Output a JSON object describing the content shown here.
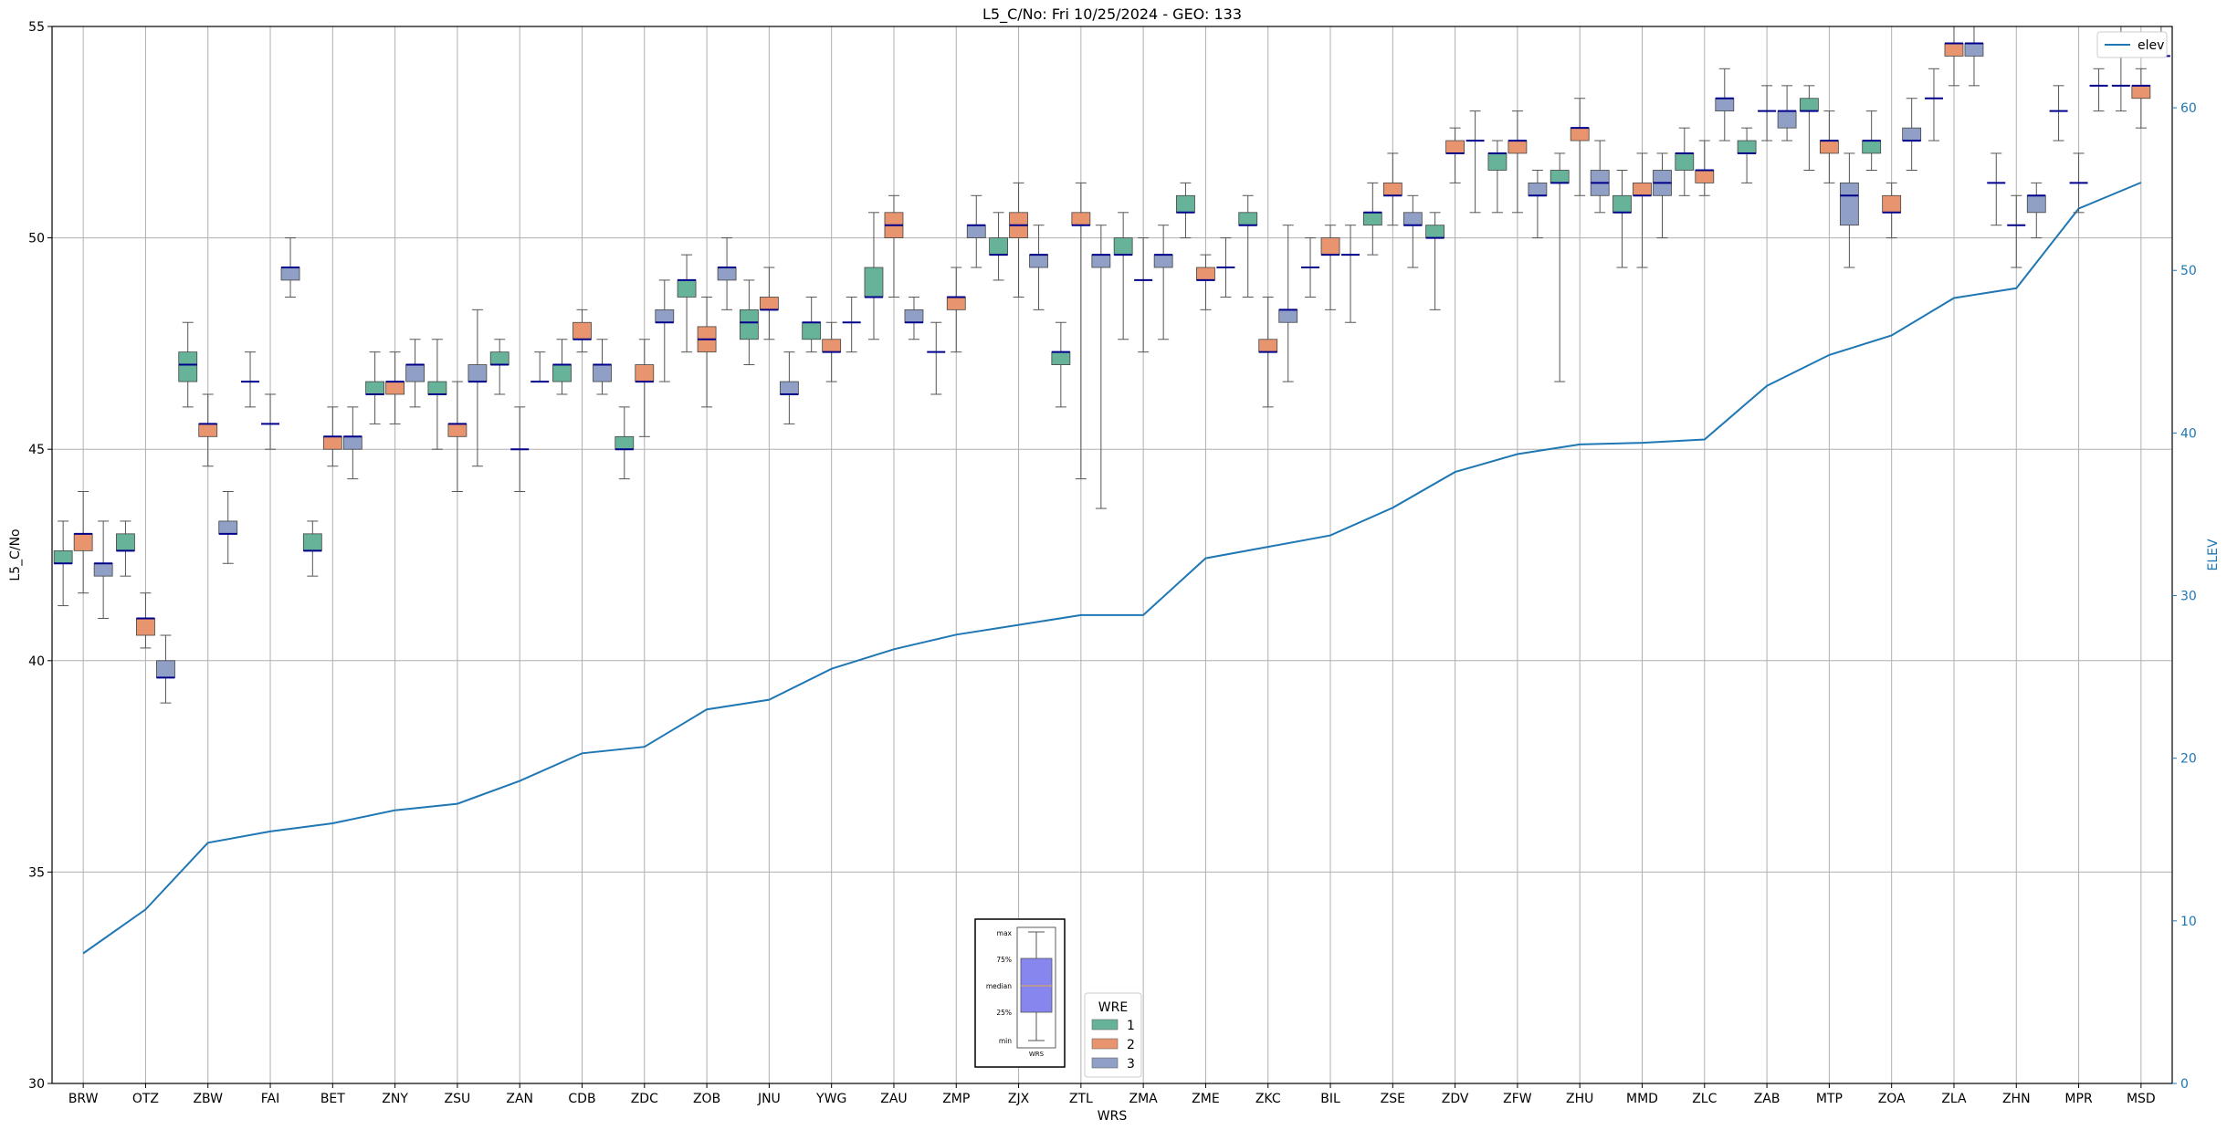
{
  "chart_data": {
    "type": "box",
    "title": "L5_C/No: Fri 10/25/2024 - GEO: 133",
    "xlabel": "WRS",
    "ylabel": "L5_C/No",
    "y2label": "ELEV",
    "ylim": [
      30,
      55
    ],
    "y2lim": [
      0,
      65
    ],
    "yticks": [
      30,
      35,
      40,
      45,
      50,
      55
    ],
    "y2ticks": [
      0,
      10,
      20,
      30,
      40,
      50,
      60
    ],
    "grid": true,
    "categories": [
      "BRW",
      "OTZ",
      "ZBW",
      "FAI",
      "BET",
      "ZNY",
      "ZSU",
      "ZAN",
      "CDB",
      "ZDC",
      "ZOB",
      "JNU",
      "YWG",
      "ZAU",
      "ZMP",
      "ZJX",
      "ZTL",
      "ZMA",
      "ZME",
      "ZKC",
      "BIL",
      "ZSE",
      "ZDV",
      "ZFW",
      "ZHU",
      "MMD",
      "ZLC",
      "ZAB",
      "MTP",
      "ZOA",
      "ZLA",
      "ZHN",
      "MPR",
      "MSD"
    ],
    "legend": {
      "title": "WRE",
      "placement": "bottom-center",
      "entries": [
        {
          "label": "1",
          "color": "#66b39a"
        },
        {
          "label": "2",
          "color": "#e8956f"
        },
        {
          "label": "3",
          "color": "#8f9fc6"
        }
      ]
    },
    "elev_legend": {
      "label": "elev",
      "placement": "top-right",
      "color": "#1f77b4"
    },
    "box_key": {
      "labels": [
        "max",
        "75%",
        "median",
        "25%",
        "min"
      ],
      "caption": "WRS"
    },
    "series": [
      {
        "name": "1",
        "color": "#66b39a",
        "boxes": [
          [
            41.3,
            42.3,
            42.3,
            42.6,
            43.3
          ],
          [
            42.0,
            42.6,
            42.6,
            43.0,
            43.3
          ],
          [
            46.0,
            46.6,
            47.0,
            47.3,
            48.0
          ],
          [
            46.0,
            46.6,
            46.6,
            46.6,
            47.3
          ],
          [
            42.0,
            42.6,
            42.6,
            43.0,
            43.3
          ],
          [
            45.6,
            46.3,
            46.3,
            46.6,
            47.3
          ],
          [
            45.0,
            46.3,
            46.3,
            46.6,
            47.6
          ],
          [
            46.3,
            47.0,
            47.0,
            47.3,
            47.6
          ],
          [
            46.3,
            46.6,
            47.0,
            47.0,
            47.6
          ],
          [
            44.3,
            45.0,
            45.0,
            45.3,
            46.0
          ],
          [
            47.3,
            48.6,
            49.0,
            49.0,
            49.6
          ],
          [
            47.0,
            47.6,
            48.0,
            48.3,
            49.0
          ],
          [
            47.3,
            47.6,
            48.0,
            48.0,
            48.6
          ],
          [
            47.6,
            48.6,
            48.6,
            49.3,
            50.6
          ],
          [
            46.3,
            47.3,
            47.3,
            47.3,
            48.0
          ],
          [
            49.0,
            49.6,
            49.6,
            50.0,
            50.6
          ],
          [
            46.0,
            47.0,
            47.3,
            47.3,
            48.0
          ],
          [
            47.6,
            49.6,
            49.6,
            50.0,
            50.6
          ],
          [
            50.0,
            50.6,
            50.6,
            51.0,
            51.3
          ],
          [
            48.6,
            50.3,
            50.3,
            50.6,
            51.0
          ],
          [
            48.6,
            49.3,
            49.3,
            49.3,
            50.0
          ],
          [
            49.6,
            50.3,
            50.6,
            50.6,
            51.3
          ],
          [
            48.3,
            50.0,
            50.0,
            50.3,
            50.6
          ],
          [
            50.6,
            51.6,
            52.0,
            52.0,
            52.3
          ],
          [
            46.6,
            51.3,
            51.3,
            51.6,
            52.0
          ],
          [
            49.3,
            50.6,
            50.6,
            51.0,
            51.6
          ],
          [
            51.0,
            51.6,
            52.0,
            52.0,
            52.6
          ],
          [
            51.3,
            52.0,
            52.0,
            52.3,
            52.6
          ],
          [
            51.6,
            53.0,
            53.0,
            53.3,
            53.6
          ],
          [
            51.6,
            52.0,
            52.3,
            52.3,
            53.0
          ],
          [
            52.3,
            53.3,
            53.3,
            53.3,
            54.0
          ],
          [
            50.3,
            51.3,
            51.3,
            51.3,
            52.0
          ],
          [
            52.3,
            53.0,
            53.0,
            53.0,
            53.6
          ],
          [
            53.0,
            53.6,
            53.6,
            53.6,
            55.0
          ]
        ]
      },
      {
        "name": "2",
        "color": "#e8956f",
        "boxes": [
          [
            41.6,
            42.6,
            43.0,
            43.0,
            44.0
          ],
          [
            40.3,
            40.6,
            41.0,
            41.0,
            41.6
          ],
          [
            44.6,
            45.3,
            45.6,
            45.6,
            46.3
          ],
          [
            45.0,
            45.6,
            45.6,
            45.6,
            46.3
          ],
          [
            44.6,
            45.0,
            45.3,
            45.3,
            46.0
          ],
          [
            45.6,
            46.3,
            46.6,
            46.6,
            47.3
          ],
          [
            44.0,
            45.3,
            45.6,
            45.6,
            46.6
          ],
          [
            44.0,
            45.0,
            45.0,
            45.0,
            46.0
          ],
          [
            47.3,
            47.6,
            47.6,
            48.0,
            48.3
          ],
          [
            45.3,
            46.6,
            46.6,
            47.0,
            47.6
          ],
          [
            46.0,
            47.3,
            47.6,
            47.9,
            48.6
          ],
          [
            47.6,
            48.3,
            48.3,
            48.6,
            49.3
          ],
          [
            46.6,
            47.3,
            47.3,
            47.6,
            48.0
          ],
          [
            48.6,
            50.0,
            50.3,
            50.6,
            51.0
          ],
          [
            47.3,
            48.3,
            48.6,
            48.6,
            49.3
          ],
          [
            48.6,
            50.0,
            50.3,
            50.6,
            51.3
          ],
          [
            44.3,
            50.3,
            50.3,
            50.6,
            51.3
          ],
          [
            47.3,
            49.0,
            49.0,
            49.0,
            50.0
          ],
          [
            48.3,
            49.0,
            49.0,
            49.3,
            49.6
          ],
          [
            46.0,
            47.3,
            47.3,
            47.6,
            48.6
          ],
          [
            48.3,
            49.6,
            49.6,
            50.0,
            50.3
          ],
          [
            50.3,
            51.0,
            51.0,
            51.3,
            52.0
          ],
          [
            51.3,
            52.0,
            52.0,
            52.3,
            52.6
          ],
          [
            50.6,
            52.0,
            52.3,
            52.3,
            53.0
          ],
          [
            51.0,
            52.3,
            52.6,
            52.6,
            53.3
          ],
          [
            49.3,
            51.0,
            51.0,
            51.3,
            52.0
          ],
          [
            51.0,
            51.3,
            51.6,
            51.6,
            52.3
          ],
          [
            52.3,
            53.0,
            53.0,
            53.0,
            53.6
          ],
          [
            51.3,
            52.0,
            52.3,
            52.3,
            53.0
          ],
          [
            50.0,
            50.6,
            50.6,
            51.0,
            51.3
          ],
          [
            53.6,
            54.3,
            54.6,
            54.6,
            55.0
          ],
          [
            49.3,
            50.3,
            50.3,
            50.3,
            51.0
          ],
          [
            50.6,
            51.3,
            51.3,
            51.3,
            52.0
          ],
          [
            52.6,
            53.3,
            53.6,
            53.6,
            54.0
          ]
        ]
      },
      {
        "name": "3",
        "color": "#8f9fc6",
        "boxes": [
          [
            41.0,
            42.0,
            42.3,
            42.3,
            43.3
          ],
          [
            39.0,
            39.6,
            39.6,
            40.0,
            40.6
          ],
          [
            42.3,
            43.0,
            43.0,
            43.3,
            44.0
          ],
          [
            48.6,
            49.0,
            49.3,
            49.3,
            50.0
          ],
          [
            44.3,
            45.0,
            45.3,
            45.3,
            46.0
          ],
          [
            46.0,
            46.6,
            47.0,
            47.0,
            47.6
          ],
          [
            44.6,
            46.6,
            46.6,
            47.0,
            48.3
          ],
          [
            46.6,
            46.6,
            46.6,
            46.6,
            47.3
          ],
          [
            46.3,
            46.6,
            47.0,
            47.0,
            47.6
          ],
          [
            46.6,
            48.0,
            48.0,
            48.3,
            49.0
          ],
          [
            48.3,
            49.0,
            49.3,
            49.3,
            50.0
          ],
          [
            45.6,
            46.3,
            46.3,
            46.6,
            47.3
          ],
          [
            47.3,
            48.0,
            48.0,
            48.0,
            48.6
          ],
          [
            47.6,
            48.0,
            48.0,
            48.3,
            48.6
          ],
          [
            49.3,
            50.0,
            50.3,
            50.3,
            51.0
          ],
          [
            48.3,
            49.3,
            49.6,
            49.6,
            50.3
          ],
          [
            43.6,
            49.3,
            49.6,
            49.6,
            50.3
          ],
          [
            47.6,
            49.3,
            49.6,
            49.6,
            50.3
          ],
          [
            48.6,
            49.3,
            49.3,
            49.3,
            50.0
          ],
          [
            46.6,
            48.0,
            48.3,
            48.3,
            50.3
          ],
          [
            48.0,
            49.6,
            49.6,
            49.6,
            50.3
          ],
          [
            49.3,
            50.3,
            50.3,
            50.6,
            51.0
          ],
          [
            50.6,
            52.3,
            52.3,
            52.3,
            53.0
          ],
          [
            50.0,
            51.0,
            51.0,
            51.3,
            51.6
          ],
          [
            50.6,
            51.0,
            51.3,
            51.6,
            52.3
          ],
          [
            50.0,
            51.0,
            51.3,
            51.6,
            52.0
          ],
          [
            52.3,
            53.0,
            53.3,
            53.3,
            54.0
          ],
          [
            52.3,
            52.6,
            53.0,
            53.0,
            53.6
          ],
          [
            49.3,
            50.3,
            51.0,
            51.3,
            52.0
          ],
          [
            51.6,
            52.3,
            52.3,
            52.6,
            53.3
          ],
          [
            53.6,
            54.3,
            54.6,
            54.6,
            55.0
          ],
          [
            50.0,
            50.6,
            51.0,
            51.0,
            51.3
          ],
          [
            53.0,
            53.6,
            53.6,
            53.6,
            54.0
          ],
          [
            54.3,
            54.3,
            54.3,
            54.3,
            55.0
          ]
        ]
      }
    ],
    "elev": [
      8,
      10.7,
      14.8,
      15.5,
      16.0,
      16.8,
      17.2,
      18.6,
      20.3,
      20.7,
      23.0,
      23.6,
      25.5,
      26.7,
      27.6,
      28.2,
      28.8,
      28.8,
      32.3,
      33.0,
      33.7,
      35.4,
      37.6,
      38.7,
      39.3,
      39.4,
      39.6,
      42.9,
      44.8,
      46.0,
      48.3,
      48.9,
      53.8,
      55.4
    ]
  }
}
